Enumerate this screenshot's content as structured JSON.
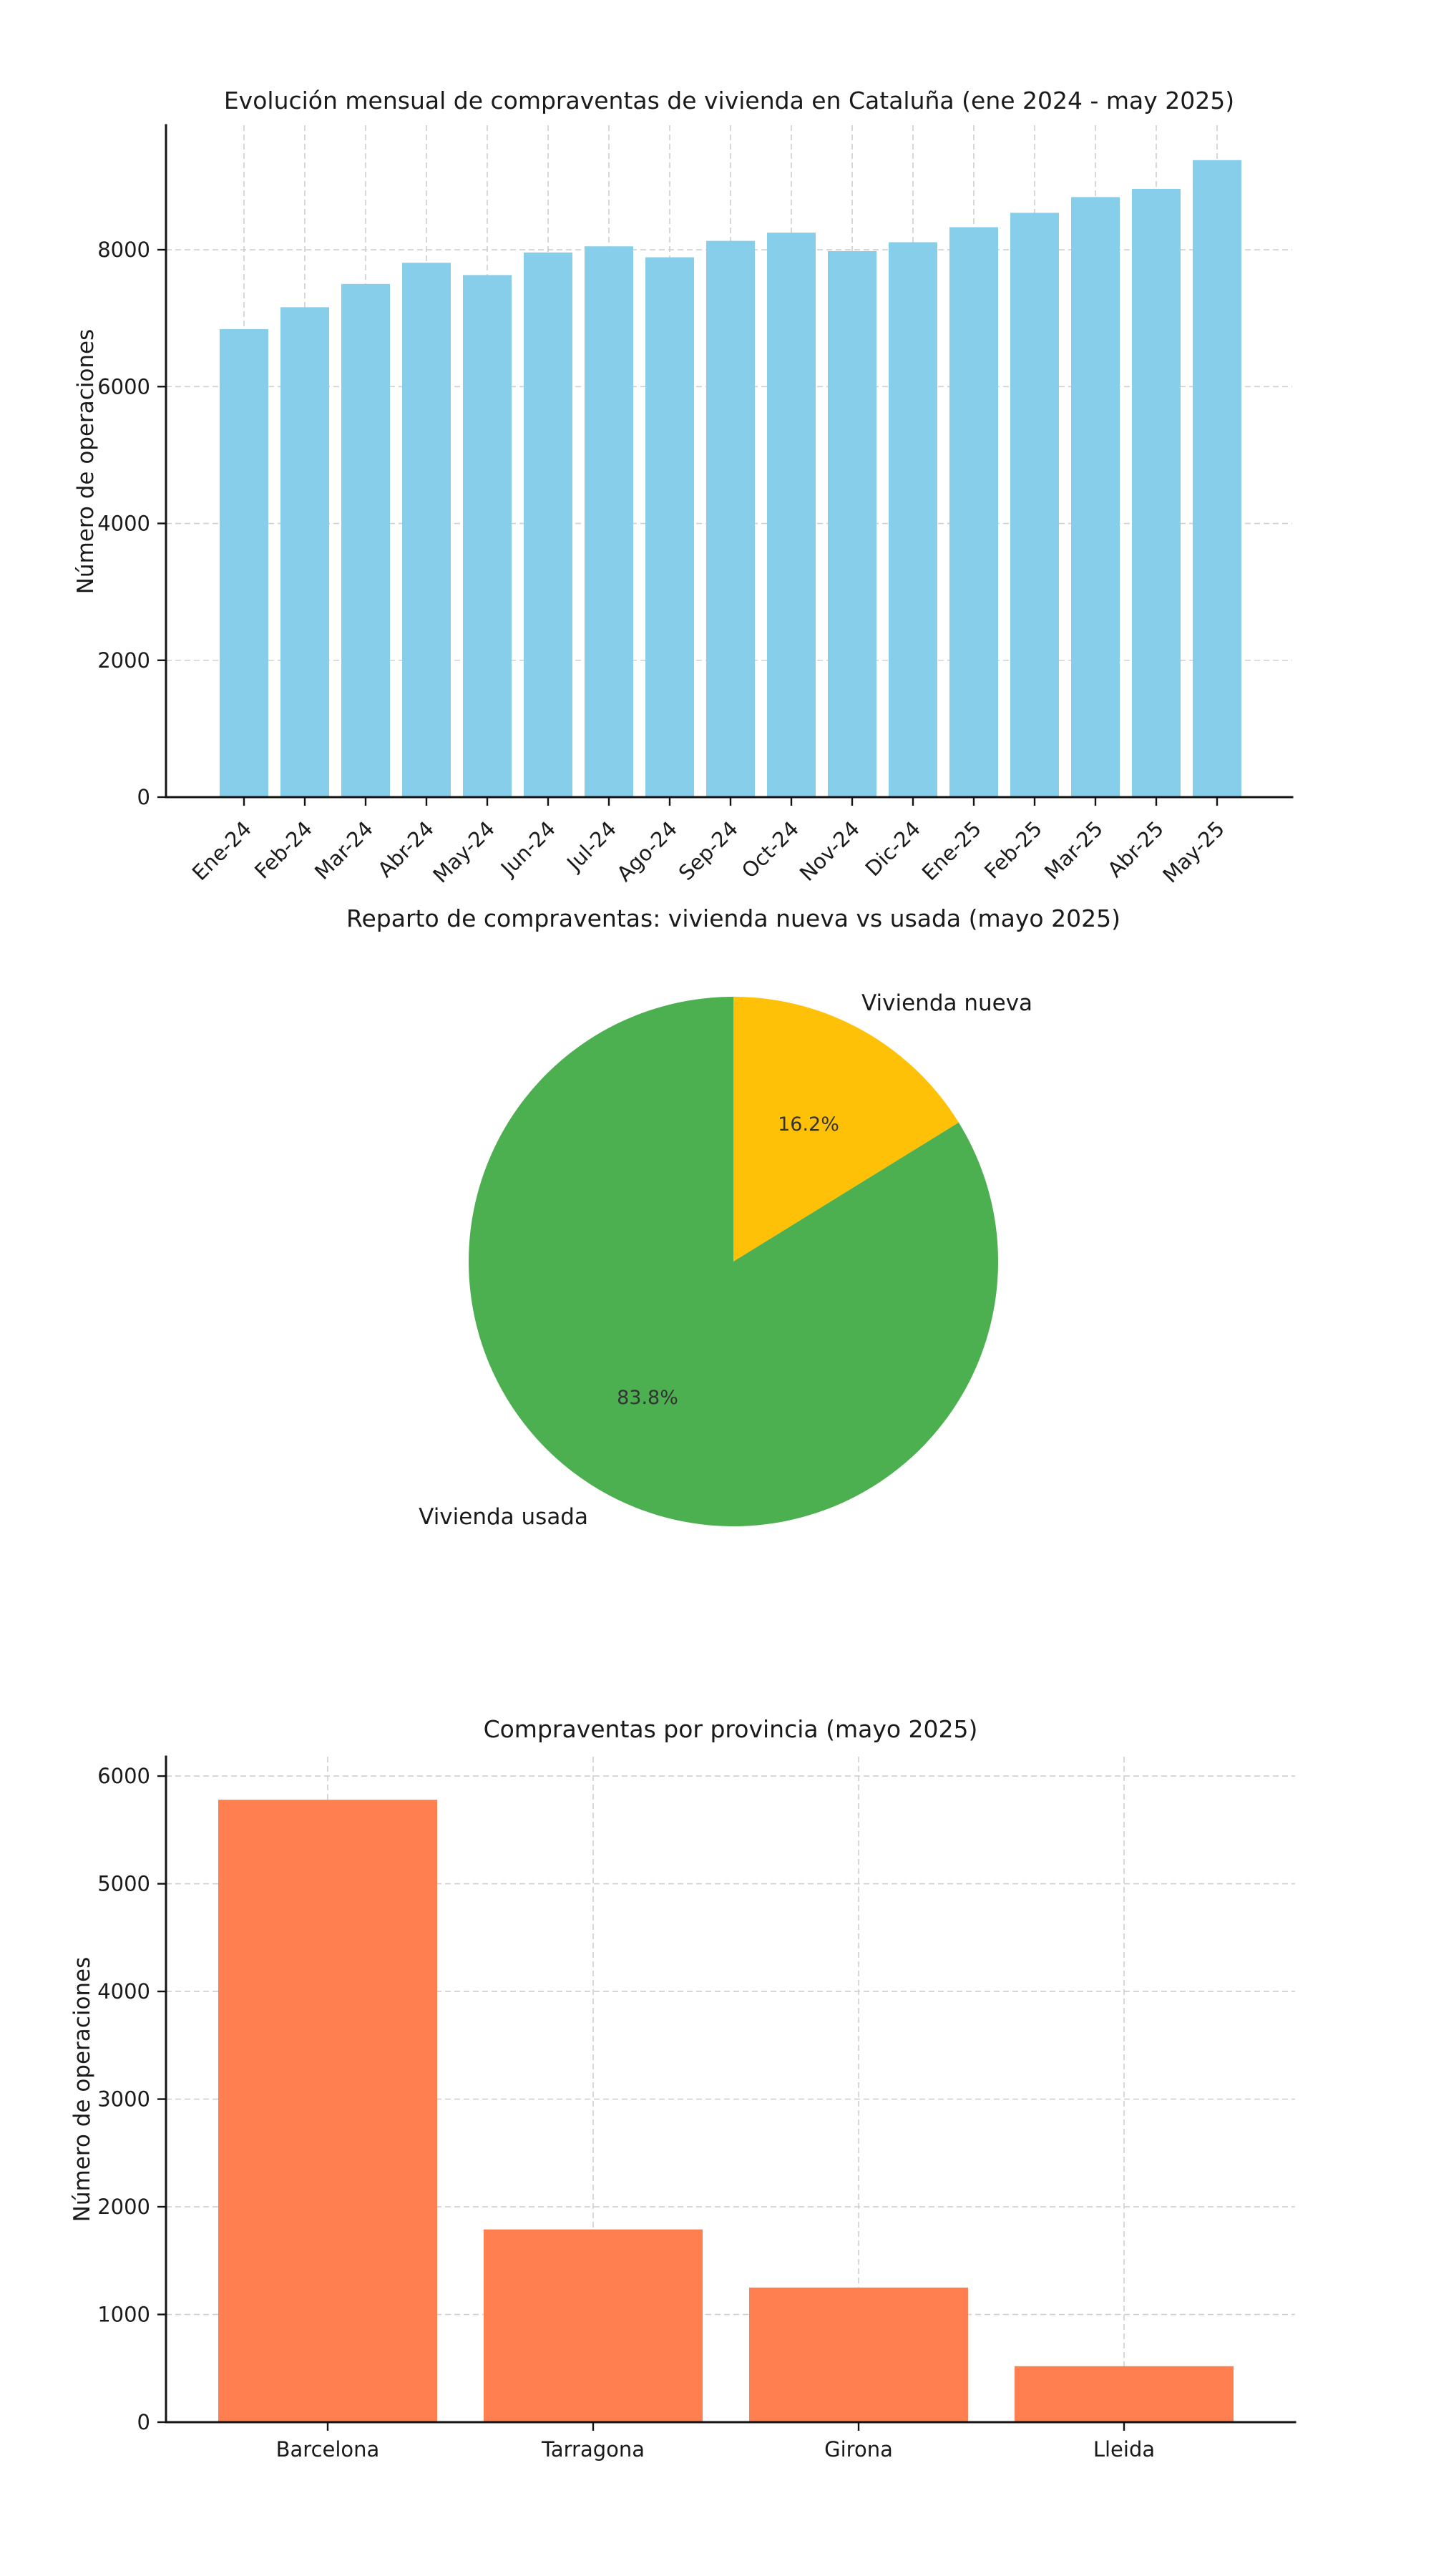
{
  "figure": {
    "background": "#ffffff",
    "text_color": "#1a1a1a",
    "grid_color": "#cfcfcf"
  },
  "chart_data": [
    {
      "type": "bar",
      "title": "Evolución mensual de compraventas de vivienda en Cataluña (ene 2024 - may 2025)",
      "xlabel": "",
      "ylabel": "Número de operaciones",
      "categories": [
        "Ene-24",
        "Feb-24",
        "Mar-24",
        "Abr-24",
        "May-24",
        "Jun-24",
        "Jul-24",
        "Ago-24",
        "Sep-24",
        "Oct-24",
        "Nov-24",
        "Dic-24",
        "Ene-25",
        "Feb-25",
        "Mar-25",
        "Abr-25",
        "May-25"
      ],
      "values": [
        6840,
        7160,
        7500,
        7810,
        7630,
        7960,
        8050,
        7890,
        8130,
        8250,
        7980,
        8110,
        8330,
        8540,
        8770,
        8890,
        9310
      ],
      "yticks": [
        0,
        2000,
        4000,
        6000,
        8000
      ],
      "ylim": [
        0,
        9820
      ],
      "bar_color": "#87CEEB",
      "grid": true,
      "x_tick_rotation": 45,
      "legend": "none"
    },
    {
      "type": "pie",
      "title": "Reparto de compraventas: vivienda nueva vs usada (mayo 2025)",
      "labels": [
        "Vivienda nueva",
        "Vivienda usada"
      ],
      "values_percent": [
        16.2,
        83.8
      ],
      "pct_labels": [
        "16.2%",
        "83.8%"
      ],
      "colors": [
        "#FFC107",
        "#4CAF50"
      ],
      "start_angle_deg": 90,
      "direction": "clockwise",
      "legend": "none"
    },
    {
      "type": "bar",
      "title": "Compraventas por provincia (mayo 2025)",
      "xlabel": "",
      "ylabel": "Número de operaciones",
      "categories": [
        "Barcelona",
        "Tarragona",
        "Girona",
        "Lleida"
      ],
      "values": [
        5780,
        1790,
        1250,
        520
      ],
      "yticks": [
        0,
        1000,
        2000,
        3000,
        4000,
        5000,
        6000
      ],
      "ylim": [
        0,
        6180
      ],
      "bar_color": "#FF7F50",
      "grid": true,
      "x_tick_rotation": 0,
      "legend": "none"
    }
  ]
}
